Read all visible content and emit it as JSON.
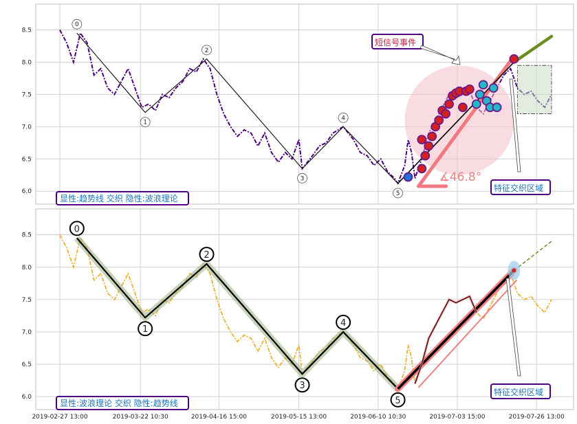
{
  "chart_data": [
    {
      "type": "line",
      "panel": "top",
      "caption": "显性:趋势线 交织 隐性:波浪理论",
      "ylim": [
        5.8,
        8.9
      ],
      "y_ticks": [
        "6.0",
        "6.5",
        "7.0",
        "7.5",
        "8.0",
        "8.5"
      ],
      "grid": true,
      "price_color": "#4b0082",
      "wave_points": [
        {
          "label": "0",
          "x": 0.25,
          "y": 8.45
        },
        {
          "label": "1",
          "x": 1.25,
          "y": 7.22
        },
        {
          "label": "2",
          "x": 2.15,
          "y": 8.05
        },
        {
          "label": "3",
          "x": 3.55,
          "y": 6.35
        },
        {
          "label": "4",
          "x": 4.15,
          "y": 7.0
        },
        {
          "label": "5",
          "x": 4.95,
          "y": 6.12
        }
      ],
      "price_series": [
        [
          0,
          8.5
        ],
        [
          0.1,
          8.3
        ],
        [
          0.2,
          8.0
        ],
        [
          0.3,
          8.45
        ],
        [
          0.4,
          8.3
        ],
        [
          0.5,
          7.8
        ],
        [
          0.6,
          7.9
        ],
        [
          0.7,
          7.6
        ],
        [
          0.8,
          7.5
        ],
        [
          0.9,
          7.7
        ],
        [
          1.0,
          7.9
        ],
        [
          1.1,
          7.6
        ],
        [
          1.2,
          7.3
        ],
        [
          1.3,
          7.35
        ],
        [
          1.4,
          7.25
        ],
        [
          1.5,
          7.5
        ],
        [
          1.6,
          7.45
        ],
        [
          1.7,
          7.6
        ],
        [
          1.8,
          7.7
        ],
        [
          1.9,
          7.9
        ],
        [
          2.0,
          7.85
        ],
        [
          2.1,
          8.05
        ],
        [
          2.2,
          7.9
        ],
        [
          2.3,
          7.5
        ],
        [
          2.4,
          7.2
        ],
        [
          2.5,
          7.0
        ],
        [
          2.6,
          6.85
        ],
        [
          2.7,
          6.95
        ],
        [
          2.8,
          6.9
        ],
        [
          2.9,
          6.7
        ],
        [
          3.0,
          6.9
        ],
        [
          3.1,
          6.6
        ],
        [
          3.2,
          6.45
        ],
        [
          3.3,
          6.6
        ],
        [
          3.4,
          6.5
        ],
        [
          3.5,
          6.8
        ],
        [
          3.55,
          6.35
        ],
        [
          3.7,
          6.55
        ],
        [
          3.8,
          6.7
        ],
        [
          3.9,
          6.75
        ],
        [
          4.0,
          6.9
        ],
        [
          4.15,
          7.0
        ],
        [
          4.3,
          6.8
        ],
        [
          4.4,
          6.6
        ],
        [
          4.5,
          6.55
        ],
        [
          4.6,
          6.4
        ],
        [
          4.7,
          6.5
        ],
        [
          4.8,
          6.3
        ],
        [
          4.9,
          6.2
        ],
        [
          4.95,
          6.12
        ],
        [
          5.05,
          6.4
        ],
        [
          5.1,
          6.8
        ],
        [
          5.15,
          6.6
        ],
        [
          5.2,
          6.2
        ],
        [
          5.3,
          6.5
        ],
        [
          5.4,
          6.9
        ],
        [
          5.5,
          7.1
        ],
        [
          5.6,
          7.3
        ],
        [
          5.7,
          7.5
        ],
        [
          5.8,
          7.45
        ],
        [
          5.9,
          7.5
        ],
        [
          6.0,
          7.55
        ],
        [
          6.1,
          7.3
        ],
        [
          6.2,
          7.2
        ],
        [
          6.3,
          7.4
        ],
        [
          6.4,
          7.6
        ],
        [
          6.5,
          7.8
        ],
        [
          6.6,
          7.9
        ],
        [
          6.7,
          7.6
        ],
        [
          6.8,
          7.5
        ],
        [
          6.9,
          7.55
        ],
        [
          7.0,
          7.4
        ],
        [
          7.1,
          7.3
        ],
        [
          7.2,
          7.5
        ]
      ],
      "trend_line": [
        [
          4.95,
          6.12
        ],
        [
          6.65,
          8.0
        ]
      ],
      "trend_extension": [
        [
          6.65,
          8.0
        ],
        [
          7.2,
          8.4
        ]
      ],
      "angle_label": "∡46.8°",
      "event_bubbles_red": [
        {
          "x": 5.3,
          "y": 6.35
        },
        {
          "x": 5.35,
          "y": 6.55
        },
        {
          "x": 5.4,
          "y": 6.7
        },
        {
          "x": 5.45,
          "y": 6.85
        },
        {
          "x": 5.5,
          "y": 7.0
        },
        {
          "x": 5.55,
          "y": 7.1
        },
        {
          "x": 5.6,
          "y": 7.25
        },
        {
          "x": 5.7,
          "y": 7.35
        },
        {
          "x": 5.75,
          "y": 7.48
        },
        {
          "x": 5.8,
          "y": 7.52
        },
        {
          "x": 5.85,
          "y": 7.55
        },
        {
          "x": 5.95,
          "y": 7.55
        },
        {
          "x": 6.0,
          "y": 7.58
        },
        {
          "x": 5.65,
          "y": 7.2
        },
        {
          "x": 5.9,
          "y": 7.3
        },
        {
          "x": 5.3,
          "y": 6.8
        },
        {
          "x": 6.65,
          "y": 8.05
        }
      ],
      "event_bubbles_blue": [
        {
          "x": 5.1,
          "y": 6.22
        },
        {
          "x": 6.1,
          "y": 7.35
        },
        {
          "x": 6.15,
          "y": 7.5
        },
        {
          "x": 6.2,
          "y": 7.65
        },
        {
          "x": 6.25,
          "y": 7.4
        },
        {
          "x": 6.3,
          "y": 7.3
        },
        {
          "x": 6.35,
          "y": 7.6
        },
        {
          "x": 6.4,
          "y": 7.3
        }
      ],
      "highlight_circle": {
        "x": 5.85,
        "y": 7.1,
        "r_units": 0.8
      },
      "feature_box": {
        "x0": 6.7,
        "x1": 7.2,
        "y0": 7.2,
        "y1": 7.95
      },
      "callouts": {
        "short_signal": "短信号事件",
        "feature_zone": "特征交织区域"
      }
    },
    {
      "type": "line",
      "panel": "bottom",
      "caption": "显性:波浪理论 交织 隐性:趋势线",
      "ylim": [
        5.8,
        8.9
      ],
      "y_ticks": [
        "6.0",
        "6.5",
        "7.0",
        "7.5",
        "8.0",
        "8.5"
      ],
      "grid": true,
      "price_color": "#f0b030",
      "wave_points": [
        {
          "label": "0",
          "x": 0.25,
          "y": 8.45
        },
        {
          "label": "1",
          "x": 1.25,
          "y": 7.22
        },
        {
          "label": "2",
          "x": 2.15,
          "y": 8.05
        },
        {
          "label": "3",
          "x": 3.55,
          "y": 6.35
        },
        {
          "label": "4",
          "x": 4.15,
          "y": 7.0
        },
        {
          "label": "5",
          "x": 4.95,
          "y": 6.12
        }
      ],
      "trend_line": [
        [
          4.95,
          6.12
        ],
        [
          6.65,
          7.95
        ]
      ],
      "trend_extension": [
        [
          6.65,
          7.95
        ],
        [
          7.2,
          8.4
        ]
      ],
      "x_ticks": [
        "2019-02-27 13:00",
        "2019-03-22 10:30",
        "2019-04-16 15:00",
        "2019-05-15 13:00",
        "2019-06-10 10:30",
        "2019-07-03 15:00",
        "2019-07-26 13:00"
      ],
      "callouts": {
        "feature_zone": "特征交织区域"
      }
    }
  ]
}
